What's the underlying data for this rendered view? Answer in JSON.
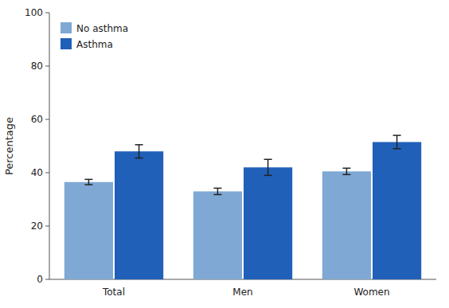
{
  "chart_data": {
    "type": "bar",
    "categories": [
      "Total",
      "Men",
      "Women"
    ],
    "series": [
      {
        "name": "No asthma",
        "color": "#7fa8d4",
        "values": [
          36.5,
          33.0,
          40.5
        ],
        "errors": [
          1.0,
          1.2,
          1.2
        ]
      },
      {
        "name": "Asthma",
        "color": "#2060b8",
        "values": [
          48.0,
          42.0,
          51.5
        ],
        "errors": [
          2.5,
          3.0,
          2.5
        ]
      }
    ],
    "ylabel": "Percentage",
    "ylim": [
      0,
      100
    ],
    "yticks": [
      0,
      20,
      40,
      60,
      80,
      100
    ],
    "legend": "upper left",
    "grid": false
  }
}
